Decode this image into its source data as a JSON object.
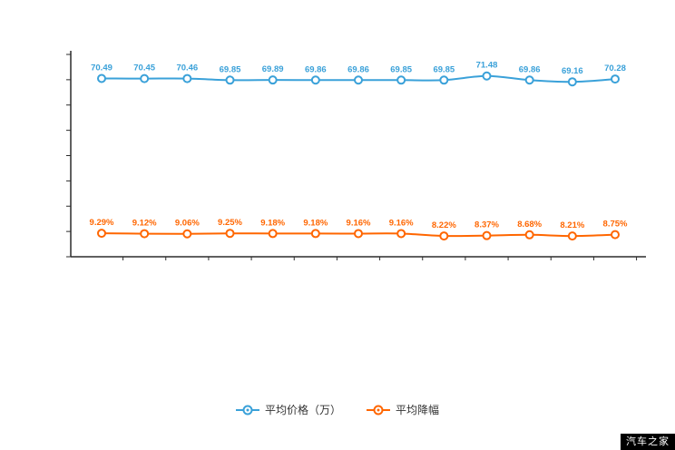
{
  "legend": {
    "note": "two series legend at bottom center"
  },
  "watermark": {
    "text": "汽车之家"
  },
  "colors": {
    "series1": "#3aa1d9",
    "series2": "#ff6600",
    "axis": "#2b2b2b",
    "background": "#ffffff",
    "legend_text": "#333333",
    "watermark_bg": "#000000",
    "watermark_text": "#ffffff"
  },
  "chart_data": {
    "type": "line",
    "title": "",
    "xlabel": "",
    "ylabel": "",
    "ylim": [
      0,
      80
    ],
    "grid": false,
    "legend_position": "bottom",
    "smooth": true,
    "series": [
      {
        "name": "平均价格（万）",
        "color": "#3aa1d9",
        "values": [
          70.49,
          70.45,
          70.46,
          69.85,
          69.89,
          69.86,
          69.86,
          69.85,
          69.85,
          71.48,
          69.86,
          69.16,
          70.28
        ],
        "labels": [
          "70.49",
          "70.45",
          "70.46",
          "69.85",
          "69.89",
          "69.86",
          "69.86",
          "69.85",
          "69.85",
          "71.48",
          "69.86",
          "69.16",
          "70.28"
        ]
      },
      {
        "name": "平均降幅",
        "color": "#ff6600",
        "values": [
          9.29,
          9.12,
          9.06,
          9.25,
          9.18,
          9.18,
          9.16,
          9.16,
          8.22,
          8.37,
          8.68,
          8.21,
          8.75
        ],
        "labels": [
          "9.29%",
          "9.12%",
          "9.06%",
          "9.25%",
          "9.18%",
          "9.18%",
          "9.16%",
          "9.16%",
          "8.22%",
          "8.37%",
          "8.68%",
          "8.21%",
          "8.75%"
        ]
      }
    ]
  }
}
